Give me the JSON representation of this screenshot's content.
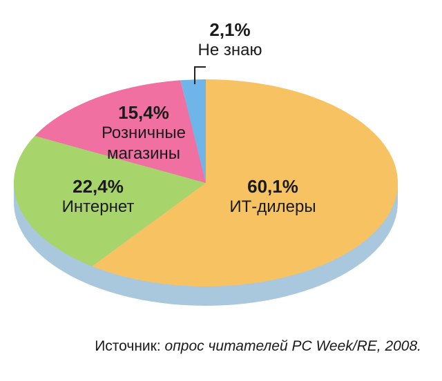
{
  "chart_data": {
    "type": "pie",
    "categories": [
      "ИТ-дилеры",
      "Интернет",
      "Розничные магазины",
      "Не знаю"
    ],
    "values": [
      60.1,
      22.4,
      15.4,
      2.1
    ],
    "value_labels": [
      "60,1%",
      "22,4%",
      "15,4%",
      "2,1%"
    ],
    "colors": [
      "#f7c262",
      "#a8d46c",
      "#ef70a1",
      "#6fb5e8"
    ],
    "source_label": "Источник:",
    "source_text": "опрос читателей PC Week/RE, 2008."
  }
}
